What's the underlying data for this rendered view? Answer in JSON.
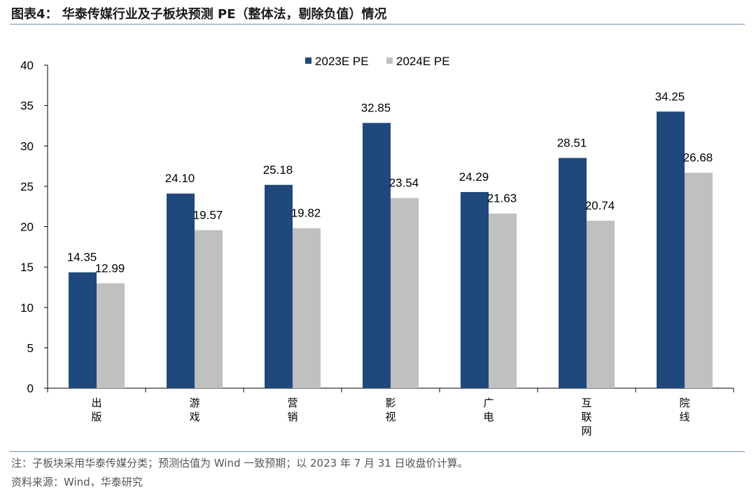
{
  "title": "图表4： 华泰传媒行业及子板块预测 PE（整体法，剔除负值）情况",
  "footnote": "注：子板块采用华泰传媒分类；预测估值为 Wind 一致预期；以 2023 年 7 月 31 日收盘价计算。",
  "source": "资料来源：Wind，华泰研究",
  "colors": {
    "series1": "#1f497d",
    "series2": "#c0c0c0",
    "rule": "#6a8fb5"
  },
  "chart_data": {
    "type": "bar",
    "title": "",
    "xlabel": "",
    "ylabel": "",
    "ylim": [
      0,
      40
    ],
    "yticks": [
      0,
      5,
      10,
      15,
      20,
      25,
      30,
      35,
      40
    ],
    "grid": false,
    "legend_position": "top",
    "categories": [
      "出版",
      "游戏",
      "营销",
      "影视",
      "广电",
      "互联网",
      "院线"
    ],
    "series": [
      {
        "name": "2023E PE",
        "color": "#1f497d",
        "values": [
          14.35,
          24.1,
          25.18,
          32.85,
          24.29,
          28.51,
          34.25
        ],
        "labels": [
          "14.35",
          "24.10",
          "25.18",
          "32.85",
          "24.29",
          "28.51",
          "34.25"
        ]
      },
      {
        "name": "2024E PE",
        "color": "#c0c0c0",
        "values": [
          12.99,
          19.57,
          19.82,
          23.54,
          21.63,
          20.74,
          26.68
        ],
        "labels": [
          "12.99",
          "19.57",
          "19.82",
          "23.54",
          "21.63",
          "20.74",
          "26.68"
        ]
      }
    ]
  }
}
